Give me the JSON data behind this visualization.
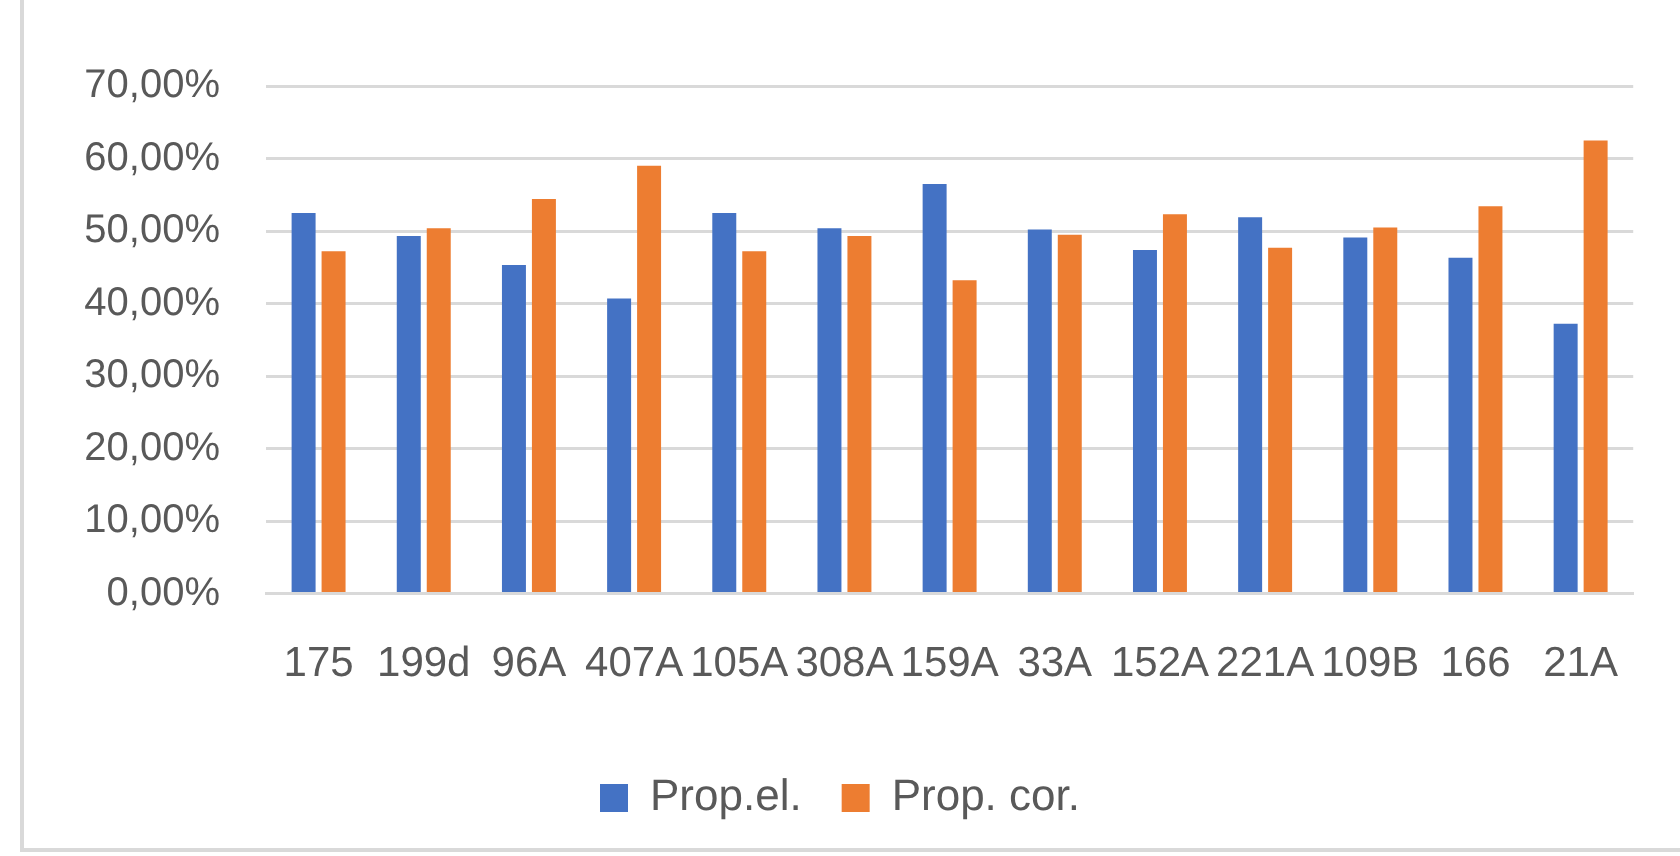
{
  "chart_data": {
    "type": "bar",
    "categories": [
      "175",
      "199d",
      "96A",
      "407A",
      "105A",
      "308A",
      "159A",
      "33A",
      "152A",
      "221A",
      "109B",
      "166",
      "21A"
    ],
    "series": [
      {
        "name": "Prop.el.",
        "color": "#4472c4",
        "values": [
          52.5,
          49.3,
          45.3,
          40.7,
          52.5,
          50.4,
          56.5,
          50.2,
          47.4,
          51.9,
          49.1,
          46.3,
          37.2
        ]
      },
      {
        "name": "Prop. cor.",
        "color": "#ed7d31",
        "values": [
          47.2,
          50.4,
          54.4,
          59.0,
          47.2,
          49.3,
          43.2,
          49.5,
          52.3,
          47.7,
          50.5,
          53.4,
          62.5
        ]
      }
    ],
    "ylim": [
      0,
      70
    ],
    "yticks": [
      {
        "value": 0,
        "label": "0,00%"
      },
      {
        "value": 10,
        "label": "10,00%"
      },
      {
        "value": 20,
        "label": "20,00%"
      },
      {
        "value": 30,
        "label": "30,00%"
      },
      {
        "value": 40,
        "label": "40,00%"
      },
      {
        "value": 50,
        "label": "50,00%"
      },
      {
        "value": 60,
        "label": "60,00%"
      },
      {
        "value": 70,
        "label": "70,00%"
      }
    ],
    "grid": "y",
    "legend": "bottom"
  }
}
